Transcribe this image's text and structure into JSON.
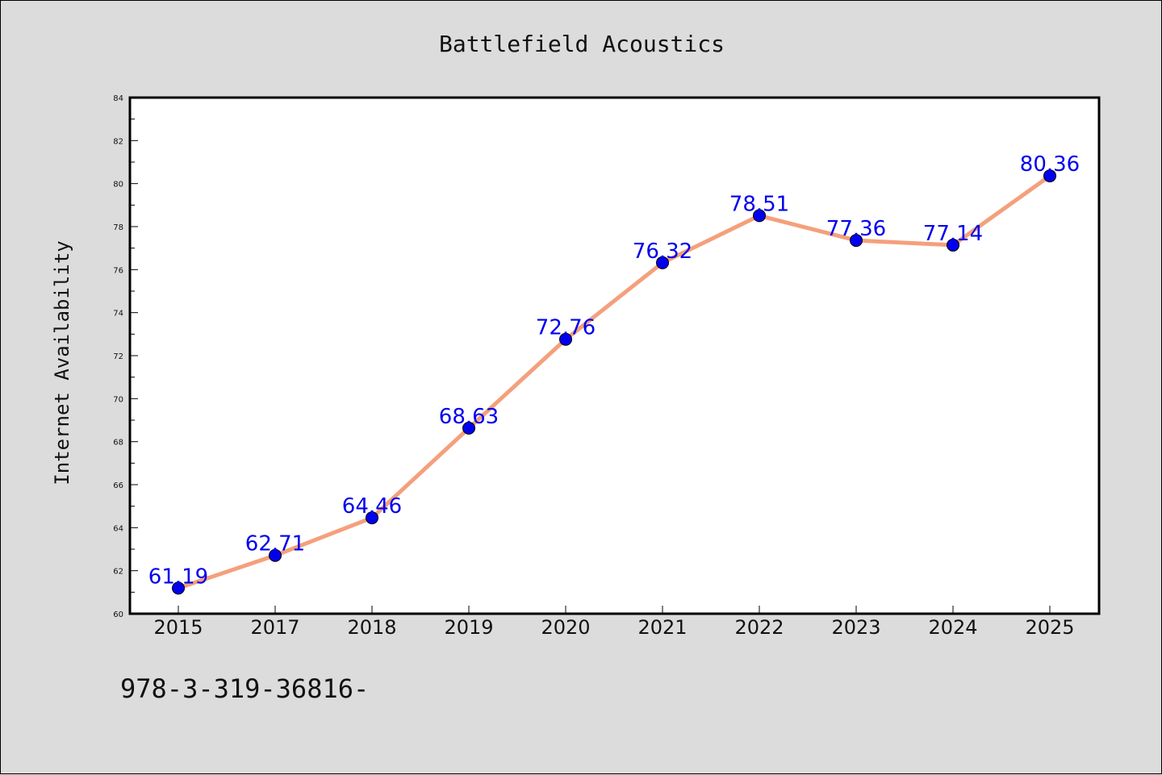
{
  "chart_data": {
    "type": "line",
    "title": "Battlefield Acoustics",
    "xlabel": "",
    "ylabel": "Internet Availability",
    "categories": [
      "2015",
      "2017",
      "2018",
      "2019",
      "2020",
      "2021",
      "2022",
      "2023",
      "2024",
      "2025"
    ],
    "series": [
      {
        "values": [
          61.19,
          62.71,
          64.46,
          68.63,
          72.76,
          76.32,
          78.51,
          77.36,
          77.14,
          80.36
        ],
        "line_color": "#f4a07c",
        "marker_color": "#0000ee"
      }
    ],
    "data_labels": [
      "61.19",
      "62.71",
      "64.46",
      "68.63",
      "72.76",
      "76.32",
      "78.51",
      "77.36",
      "77.14",
      "80.36"
    ],
    "data_label_color": "#0000ee",
    "ylim": [
      60,
      84
    ],
    "yticks": [
      "60",
      "62",
      "64",
      "66",
      "68",
      "70",
      "72",
      "74",
      "76",
      "78",
      "80",
      "82",
      "84"
    ],
    "grid": false,
    "legend": "none"
  },
  "footer": {
    "text": "978-3-319-36816-"
  }
}
